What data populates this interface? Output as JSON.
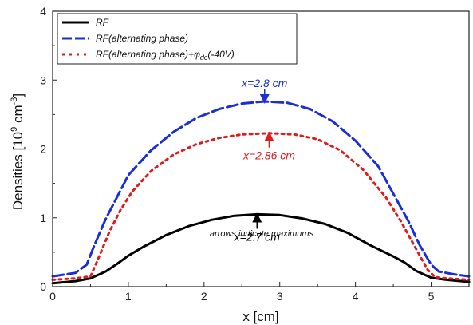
{
  "chart_data": {
    "type": "line",
    "xlabel": "x [cm]",
    "ylabel_main": "Densities [10",
    "ylabel_sup1": "9",
    "ylabel_mid": " cm",
    "ylabel_sup2": "-3",
    "ylabel_end": "]",
    "xlim": [
      0,
      5.5
    ],
    "ylim": [
      0,
      4
    ],
    "xticks": [
      "0",
      "1",
      "2",
      "3",
      "4",
      "5"
    ],
    "yticks": [
      "0",
      "1",
      "2",
      "3",
      "4"
    ],
    "grid": false,
    "legend_position": "top-left",
    "series": [
      {
        "name": "RF",
        "color": "#000000",
        "style": "solid",
        "x": [
          0,
          0.3,
          0.5,
          0.7,
          0.85,
          1.0,
          1.2,
          1.5,
          1.8,
          2.1,
          2.4,
          2.7,
          3.0,
          3.3,
          3.6,
          3.9,
          4.2,
          4.5,
          4.65,
          4.8,
          5.0,
          5.2,
          5.5
        ],
        "y": [
          0.05,
          0.08,
          0.12,
          0.22,
          0.33,
          0.45,
          0.58,
          0.75,
          0.88,
          0.97,
          1.03,
          1.05,
          1.04,
          0.99,
          0.91,
          0.78,
          0.6,
          0.44,
          0.35,
          0.23,
          0.13,
          0.1,
          0.07
        ]
      },
      {
        "name": "RF(alternating phase)",
        "color": "#1a2fd6",
        "style": "dashed",
        "x": [
          0,
          0.3,
          0.45,
          0.55,
          0.7,
          0.85,
          1.0,
          1.3,
          1.6,
          1.9,
          2.2,
          2.5,
          2.8,
          3.1,
          3.4,
          3.7,
          4.0,
          4.3,
          4.5,
          4.7,
          4.85,
          5.0,
          5.1,
          5.3,
          5.5
        ],
        "y": [
          0.15,
          0.2,
          0.32,
          0.6,
          0.98,
          1.3,
          1.62,
          1.98,
          2.25,
          2.45,
          2.58,
          2.66,
          2.69,
          2.67,
          2.58,
          2.4,
          2.12,
          1.75,
          1.35,
          0.95,
          0.6,
          0.32,
          0.22,
          0.18,
          0.15
        ]
      },
      {
        "name": "RF(alternating phase)+",
        "color": "#e01b1b",
        "style": "dotted",
        "x": [
          0,
          0.3,
          0.5,
          0.6,
          0.75,
          0.9,
          1.05,
          1.3,
          1.6,
          1.9,
          2.2,
          2.5,
          2.86,
          3.2,
          3.5,
          3.8,
          4.1,
          4.4,
          4.6,
          4.8,
          4.95,
          5.05,
          5.2,
          5.5
        ],
        "y": [
          0.1,
          0.12,
          0.15,
          0.4,
          0.8,
          1.12,
          1.38,
          1.68,
          1.92,
          2.07,
          2.16,
          2.21,
          2.23,
          2.21,
          2.14,
          1.98,
          1.7,
          1.3,
          0.95,
          0.55,
          0.25,
          0.14,
          0.12,
          0.1
        ]
      }
    ],
    "legend_suffix": {
      "phi": "φ",
      "sub": "dc",
      "tail": "(-40V)"
    },
    "annotations": [
      {
        "text": "x=2.8 cm",
        "x": 2.8,
        "y": 2.69,
        "color": "#1a2fd6"
      },
      {
        "text": "x=2.86 cm",
        "x": 2.86,
        "y": 2.23,
        "color": "#e01b1b"
      },
      {
        "text": "x=2.7 cm",
        "x": 2.7,
        "y": 1.05,
        "color": "#000000"
      }
    ],
    "note": "arrows indicate maximums"
  }
}
